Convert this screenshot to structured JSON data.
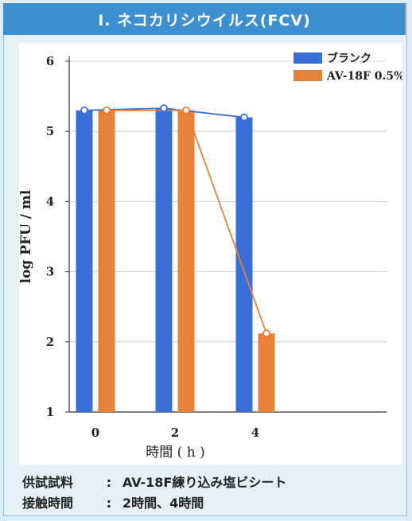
{
  "header": {
    "title": "Ⅰ. ネコカリシウイルス(FCV)"
  },
  "chart_data": {
    "type": "bar",
    "categories": [
      "0",
      "2",
      "4"
    ],
    "series": [
      {
        "name": "ブランク",
        "values": [
          5.3,
          5.33,
          5.2
        ],
        "color": "#3a6fd8"
      },
      {
        "name": "AV-18F 0.5%",
        "values": [
          5.3,
          5.3,
          2.12
        ],
        "color": "#e8803a"
      }
    ],
    "overlay_lines": true,
    "xlabel": "時間 ( h )",
    "ylabel": "log PFU / ml",
    "ylim": [
      1,
      6
    ],
    "yticks": [
      1,
      2,
      3,
      4,
      5,
      6
    ],
    "grid": true,
    "legend": "top-right"
  },
  "footer": {
    "rows": [
      {
        "label": "供試試料",
        "sep": ":",
        "value": "AV-18F練り込み塩ビシート"
      },
      {
        "label": "接触時間",
        "sep": ":",
        "value": "2時間、4時間"
      }
    ]
  }
}
